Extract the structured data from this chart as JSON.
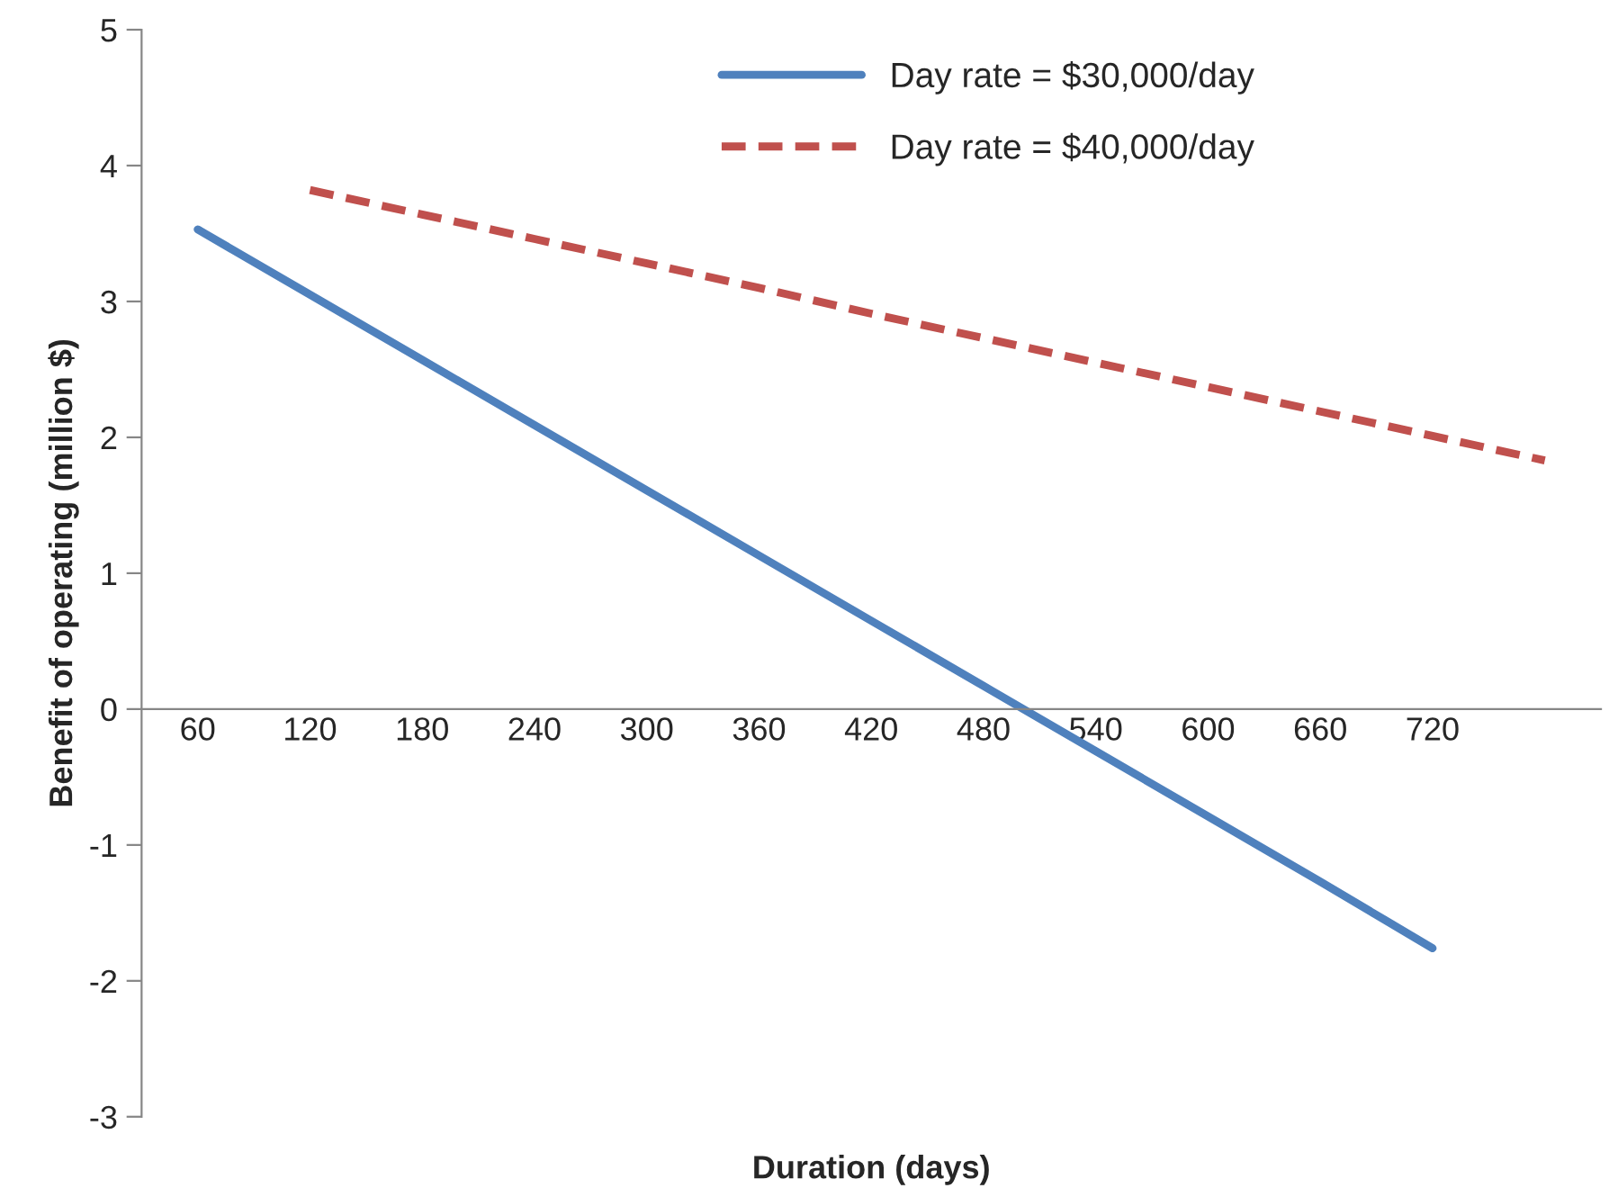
{
  "chart_data": {
    "type": "line",
    "xlabel": "Duration (days)",
    "ylabel": "Benefit of operating (million $)",
    "categories": [
      "60",
      "120",
      "180",
      "240",
      "300",
      "360",
      "420",
      "480",
      "540",
      "600",
      "660",
      "720",
      null
    ],
    "series": [
      {
        "name": "Day rate = $30,000/day",
        "color": "#4f81bd",
        "line_style": "solid",
        "values": [
          3.53,
          3.05,
          2.57,
          2.09,
          1.61,
          1.13,
          0.65,
          0.17,
          -0.31,
          -0.79,
          -1.27,
          -1.76,
          null
        ]
      },
      {
        "name": "Day rate = $40,000/day",
        "color": "#c0504d",
        "line_style": "dashed",
        "values": [
          null,
          3.82,
          3.64,
          3.46,
          3.28,
          3.1,
          2.91,
          2.73,
          2.55,
          2.37,
          2.19,
          2.01,
          1.83
        ]
      }
    ],
    "ylim": [
      -3,
      5
    ],
    "yticks": [
      {
        "value": -3,
        "label": "-3"
      },
      {
        "value": -2,
        "label": "-2"
      },
      {
        "value": -1,
        "label": "-1"
      },
      0,
      1,
      2,
      3,
      4,
      5
    ],
    "grid": false,
    "legend": "top",
    "marker": "none"
  }
}
